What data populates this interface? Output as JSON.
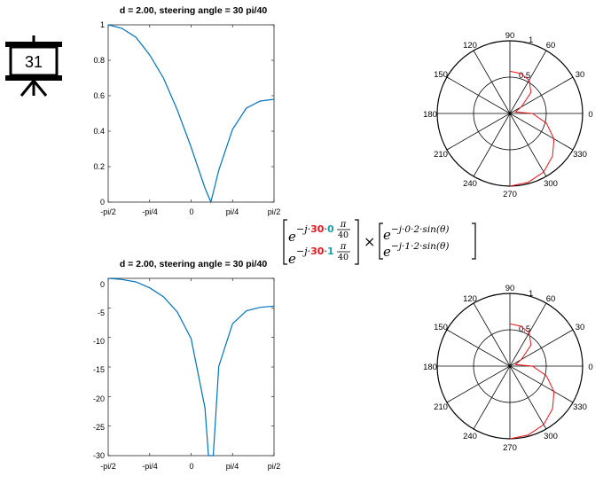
{
  "slide_number": "31",
  "icon": "presentation-board-icon",
  "plots": [
    {
      "title": "d = 2.00, steering angle  = 30 pi/40",
      "x_ticks": [
        "-pi/2",
        "-pi/4",
        "0",
        "pi/4",
        "pi/2"
      ],
      "y_ticks": [
        "1",
        "0.8",
        "0.6",
        "0.4",
        "0.2",
        "0"
      ]
    },
    {
      "title": "d = 2.00, steering angle  = 30 pi/40",
      "x_ticks": [
        "-pi/2",
        "-pi/4",
        "0",
        "pi/4",
        "pi/2"
      ],
      "y_ticks": [
        "0",
        "-5",
        "-10",
        "-15",
        "-20",
        "-25",
        "-30"
      ]
    }
  ],
  "polar_plots": [
    {
      "angle_labels": [
        "90",
        "60",
        "30",
        "0",
        "330",
        "300",
        "270",
        "240",
        "210",
        "180",
        "150",
        "120"
      ],
      "radial_labels": [
        "0.5",
        "1"
      ]
    },
    {
      "angle_labels": [
        "90",
        "60",
        "30",
        "0",
        "330",
        "300",
        "270",
        "240",
        "210",
        "180",
        "150",
        "120"
      ],
      "radial_labels": [
        "0.5",
        "1"
      ]
    }
  ],
  "equation": {
    "left_row1": {
      "base": "e",
      "exp_prefix": "−j·",
      "red": "30",
      "dot": "·",
      "teal": "0",
      "frac_num": "π",
      "frac_den": "40"
    },
    "left_row2": {
      "base": "e",
      "exp_prefix": "−j·",
      "red": "30",
      "dot": "·",
      "teal": "1",
      "frac_num": "π",
      "frac_den": "40"
    },
    "operator": "×",
    "right_row1": {
      "base": "e",
      "exp": "−j·0·2·sin(θ)"
    },
    "right_row2": {
      "base": "e",
      "exp": "−j·1·2·sin(θ)"
    }
  },
  "chart_data": [
    {
      "type": "line",
      "title": "d = 2.00, steering angle  = 30 pi/40",
      "xlabel": "",
      "ylabel": "",
      "xlim": [
        -1.5708,
        1.5708
      ],
      "ylim": [
        0,
        1
      ],
      "x_tick_labels": [
        "-pi/2",
        "-pi/4",
        "0",
        "pi/4",
        "pi/2"
      ],
      "x": [
        -1.571,
        -1.309,
        -1.047,
        -0.785,
        -0.524,
        -0.262,
        0.0,
        0.262,
        0.375,
        0.524,
        0.785,
        1.047,
        1.309,
        1.571
      ],
      "series": [
        {
          "values": [
            1.0,
            0.98,
            0.93,
            0.83,
            0.7,
            0.52,
            0.31,
            0.08,
            0.0,
            0.18,
            0.41,
            0.53,
            0.57,
            0.58
          ]
        }
      ]
    },
    {
      "type": "line",
      "title": "d = 2.00, steering angle  = 30 pi/40",
      "xlabel": "",
      "ylabel": "",
      "xlim": [
        -1.5708,
        1.5708
      ],
      "ylim": [
        -30,
        0
      ],
      "x_tick_labels": [
        "-pi/2",
        "-pi/4",
        "0",
        "pi/4",
        "pi/2"
      ],
      "x": [
        -1.571,
        -1.309,
        -1.047,
        -0.785,
        -0.524,
        -0.262,
        0.0,
        0.262,
        0.33,
        0.42,
        0.524,
        0.785,
        1.047,
        1.309,
        1.571
      ],
      "series": [
        {
          "values": [
            0.0,
            -0.2,
            -0.6,
            -1.6,
            -3.1,
            -5.7,
            -10.2,
            -21.9,
            -30,
            -30,
            -14.9,
            -7.7,
            -5.5,
            -4.9,
            -4.7
          ]
        }
      ]
    },
    {
      "type": "polar",
      "r_max": 1,
      "r_ticks": [
        0.5,
        1
      ],
      "theta_deg": [
        0,
        -15,
        -30,
        -45,
        -60,
        -75,
        -90,
        15,
        30,
        45,
        60,
        75,
        90
      ],
      "r": [
        0.31,
        0.52,
        0.7,
        0.83,
        0.93,
        0.98,
        1.0,
        0.08,
        0.18,
        0.41,
        0.53,
        0.57,
        0.58
      ]
    },
    {
      "type": "polar",
      "r_max": 1,
      "r_ticks": [
        0.5,
        1
      ],
      "theta_deg": [
        0,
        -15,
        -30,
        -45,
        -60,
        -75,
        -90,
        15,
        30,
        45,
        60,
        75,
        90
      ],
      "r": [
        0.31,
        0.52,
        0.7,
        0.83,
        0.93,
        0.98,
        1.0,
        0.08,
        0.18,
        0.41,
        0.53,
        0.57,
        0.58
      ]
    }
  ]
}
